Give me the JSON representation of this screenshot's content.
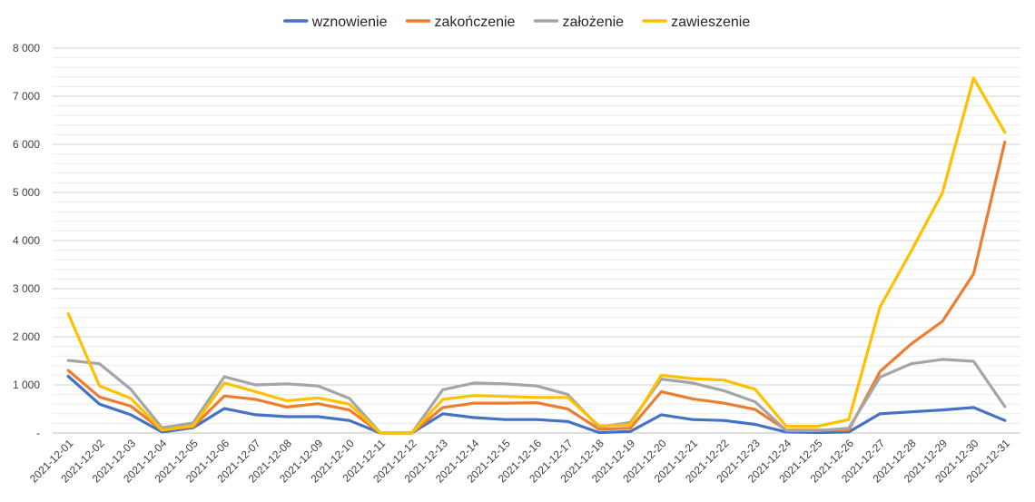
{
  "chart_data": {
    "type": "line",
    "title": "",
    "xlabel": "",
    "ylabel": "",
    "ylim": [
      0,
      8000
    ],
    "y_ticks": [
      {
        "value": 0,
        "label": "-"
      },
      {
        "value": 1000,
        "label": "1 000"
      },
      {
        "value": 2000,
        "label": "2 000"
      },
      {
        "value": 3000,
        "label": "3 000"
      },
      {
        "value": 4000,
        "label": "4 000"
      },
      {
        "value": 5000,
        "label": "5 000"
      },
      {
        "value": 6000,
        "label": "6 000"
      },
      {
        "value": 7000,
        "label": "7 000"
      },
      {
        "value": 8000,
        "label": "8 000"
      }
    ],
    "grid": true,
    "legend_position": "top-center",
    "categories": [
      "2021-12-01",
      "2021-12-02",
      "2021-12-03",
      "2021-12-04",
      "2021-12-05",
      "2021-12-06",
      "2021-12-07",
      "2021-12-08",
      "2021-12-09",
      "2021-12-10",
      "2021-12-11",
      "2021-12-12",
      "2021-12-13",
      "2021-12-14",
      "2021-12-15",
      "2021-12-16",
      "2021-12-17",
      "2021-12-18",
      "2021-12-19",
      "2021-12-20",
      "2021-12-21",
      "2021-12-22",
      "2021-12-23",
      "2021-12-24",
      "2021-12-25",
      "2021-12-26",
      "2021-12-27",
      "2021-12-28",
      "2021-12-29",
      "2021-12-30",
      "2021-12-31"
    ],
    "series": [
      {
        "name": "wznowienie",
        "color": "#4472C4",
        "values": [
          1180,
          600,
          380,
          20,
          110,
          510,
          380,
          340,
          340,
          260,
          0,
          0,
          400,
          320,
          280,
          280,
          240,
          10,
          30,
          380,
          280,
          260,
          180,
          20,
          10,
          20,
          400,
          440,
          480,
          530,
          260
        ]
      },
      {
        "name": "zakończenie",
        "color": "#ED7D31",
        "values": [
          1300,
          750,
          560,
          60,
          130,
          770,
          700,
          540,
          610,
          480,
          0,
          0,
          530,
          620,
          620,
          630,
          500,
          80,
          100,
          860,
          710,
          620,
          490,
          60,
          60,
          60,
          1280,
          1850,
          2320,
          3310,
          6050
        ]
      },
      {
        "name": "założenie",
        "color": "#A5A5A5",
        "values": [
          1510,
          1440,
          910,
          110,
          210,
          1170,
          1000,
          1020,
          980,
          720,
          0,
          0,
          900,
          1040,
          1020,
          980,
          800,
          120,
          220,
          1120,
          1040,
          880,
          650,
          50,
          50,
          100,
          1160,
          1440,
          1530,
          1490,
          550
        ]
      },
      {
        "name": "zawieszenie",
        "color": "#FFC000",
        "values": [
          2480,
          980,
          720,
          60,
          150,
          1040,
          860,
          670,
          730,
          600,
          0,
          0,
          700,
          780,
          760,
          740,
          740,
          150,
          170,
          1200,
          1130,
          1100,
          910,
          140,
          140,
          280,
          2620,
          3780,
          4990,
          7380,
          6250
        ]
      }
    ]
  }
}
